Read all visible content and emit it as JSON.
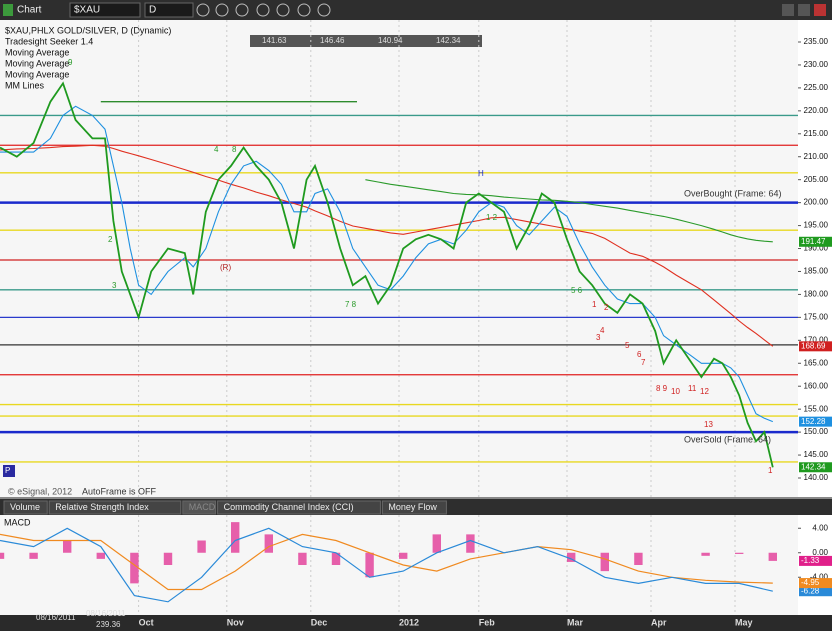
{
  "toolbar": {
    "title": "Chart",
    "symbol": "$XAU",
    "interval": "D"
  },
  "chart_data": [
    {
      "type": "line",
      "title": "$XAU,PHLX GOLD/SILVER, D (Dynamic)",
      "legend": [
        "Tradesight Seeker 1.4",
        "Moving Average",
        "Moving Average",
        "Moving Average",
        "MM Lines"
      ],
      "ohlc": [
        141.63,
        146.46,
        140.94,
        142.34
      ],
      "x": [
        0,
        4,
        8,
        12,
        15,
        18,
        22,
        25,
        27,
        29,
        31,
        33,
        36,
        40,
        44,
        46,
        49,
        52,
        55,
        58,
        61,
        64,
        67,
        70,
        73,
        75,
        78,
        81,
        84,
        87,
        90,
        93,
        96,
        99,
        102,
        105,
        108,
        111,
        114,
        117,
        120,
        123,
        126,
        129,
        132,
        135,
        138,
        141,
        144,
        147,
        150,
        153,
        156,
        158,
        161,
        164,
        167,
        170,
        172,
        174,
        176,
        178,
        180,
        182,
        184
      ],
      "series": [
        {
          "name": "$XAU",
          "color": "#1f9a1f",
          "values": [
            212,
            210,
            213,
            222,
            226,
            218,
            214,
            214,
            196,
            185,
            180,
            175,
            185,
            190,
            189,
            180,
            198,
            205,
            208,
            212,
            208,
            205,
            200,
            190,
            205,
            208,
            200,
            190,
            182,
            184,
            178,
            182,
            190,
            192,
            193,
            192,
            190,
            200,
            202,
            200,
            198,
            190,
            195,
            202,
            200,
            192,
            185,
            182,
            178,
            176,
            180,
            178,
            172,
            165,
            170,
            166,
            162,
            166,
            165,
            162,
            158,
            152,
            148,
            150,
            142.34
          ]
        },
        {
          "name": "Moving Average",
          "color": "#1e90e0",
          "values": [
            211,
            211,
            211,
            214,
            219,
            221,
            219,
            216,
            208,
            200,
            190,
            182,
            180,
            185,
            188,
            186,
            190,
            198,
            204,
            208,
            209,
            207,
            204,
            198,
            198,
            202,
            203,
            198,
            190,
            186,
            182,
            181,
            184,
            188,
            191,
            192,
            191,
            194,
            198,
            200,
            199,
            195,
            193,
            196,
            199,
            197,
            191,
            186,
            182,
            179,
            178,
            178,
            175,
            171,
            169,
            167,
            165,
            165,
            165,
            164,
            162,
            158,
            154,
            153,
            152.28
          ]
        },
        {
          "name": "Moving Average",
          "color": "#e03020",
          "values": [
            211.5,
            211.7,
            211.8,
            212,
            212.2,
            212.3,
            212.5,
            212.3,
            211.8,
            211.2,
            210.7,
            210.2,
            209.4,
            208.3,
            207.2,
            206.6,
            205.7,
            204.9,
            204,
            203.2,
            202.3,
            201.5,
            200.6,
            199.8,
            199,
            198.2,
            197.1,
            195.9,
            194.9,
            194.4,
            193.9,
            193.4,
            193.1,
            193.6,
            194.1,
            194.6,
            195.1,
            195.6,
            196.1,
            196.7,
            196.8,
            196.3,
            195.8,
            195.3,
            194.8,
            194.3,
            193.8,
            193.3,
            192.2,
            190.6,
            189,
            188.3,
            187,
            186,
            184.2,
            182.6,
            181,
            178.8,
            177.3,
            175.8,
            174.2,
            172.8,
            171.5,
            170.1,
            168.69
          ]
        },
        {
          "name": "Moving Average",
          "color": "#2a9a2a",
          "values": [
            null,
            null,
            null,
            null,
            null,
            null,
            null,
            null,
            null,
            null,
            null,
            null,
            null,
            null,
            null,
            null,
            null,
            null,
            null,
            null,
            null,
            null,
            null,
            null,
            null,
            null,
            null,
            null,
            null,
            205,
            204.5,
            204,
            203.6,
            203.2,
            202.8,
            202.4,
            202,
            201.8,
            201.7,
            201.5,
            201.2,
            201,
            200.8,
            200.6,
            200.5,
            200.3,
            200,
            199.6,
            199.2,
            198.8,
            198.3,
            197.8,
            197.3,
            197,
            196.4,
            195.7,
            195,
            194.2,
            193.6,
            193,
            192.5,
            192.1,
            191.8,
            191.6,
            191.47
          ]
        }
      ],
      "badge_colors": [
        "#1f9a1f",
        "#1e90e0",
        "#d02020",
        "#1f9a1f"
      ],
      "levels": [
        {
          "value": 222,
          "color": "#2e8b2e",
          "from": 24,
          "to": 85
        },
        {
          "value": 219,
          "color": "#3a9a8a"
        },
        {
          "value": 212.5,
          "color": "#e02020"
        },
        {
          "value": 206.5,
          "color": "#e8d820"
        },
        {
          "value": 200,
          "color": "#1a2acc",
          "weight": "thick"
        },
        {
          "value": 194,
          "color": "#e8d820"
        },
        {
          "value": 187.5,
          "color": "#d02020"
        },
        {
          "value": 181,
          "color": "#3a9a8a"
        },
        {
          "value": 175,
          "color": "#2a3acc"
        },
        {
          "value": 169,
          "color": "#333333"
        },
        {
          "value": 162.5,
          "color": "#e02020"
        },
        {
          "value": 156,
          "color": "#e8d820"
        },
        {
          "value": 153.5,
          "color": "#e8d820"
        },
        {
          "value": 150,
          "color": "#1a2acc",
          "weight": "thick"
        },
        {
          "value": 143.5,
          "color": "#e8d820"
        }
      ],
      "annotations": [
        "OverBought (Frame: 64)",
        "OverSold (Frame: 64)",
        "AutoFrame is OFF",
        "© eSignal, 2012",
        "H",
        "(R)",
        "P",
        "1",
        "2",
        "3",
        "4",
        "5",
        "6",
        "7",
        "8 9",
        "10",
        "11",
        "12",
        "13",
        "1",
        "9",
        "2",
        "3",
        "4",
        "8",
        "7 8",
        "1 2",
        "5 6"
      ],
      "xlim": [
        0,
        190
      ],
      "xticks": [
        {
          "value": 33,
          "label": "Oct"
        },
        {
          "value": 54,
          "label": "Nov"
        },
        {
          "value": 74,
          "label": "Dec"
        },
        {
          "value": 95,
          "label": "2012"
        },
        {
          "value": 114,
          "label": "Feb"
        },
        {
          "value": 135,
          "label": "Mar"
        },
        {
          "value": 155,
          "label": "Apr"
        },
        {
          "value": 175,
          "label": "May"
        }
      ],
      "ylim": [
        140,
        235
      ],
      "yticks": [
        {
          "value": 140,
          "label": "140.00"
        },
        {
          "value": 145,
          "label": "145.00"
        },
        {
          "value": 150,
          "label": "150.00"
        },
        {
          "value": 155,
          "label": "155.00"
        },
        {
          "value": 160,
          "label": "160.00"
        },
        {
          "value": 165,
          "label": "165.00"
        },
        {
          "value": 170,
          "label": "170.00"
        },
        {
          "value": 175,
          "label": "175.00"
        },
        {
          "value": 180,
          "label": "180.00"
        },
        {
          "value": 185,
          "label": "185.00"
        },
        {
          "value": 190,
          "label": "190.00"
        },
        {
          "value": 195,
          "label": "195.00"
        },
        {
          "value": 200,
          "label": "200.00"
        },
        {
          "value": 205,
          "label": "205.00"
        },
        {
          "value": 210,
          "label": "210.00"
        },
        {
          "value": 215,
          "label": "215.00"
        },
        {
          "value": 220,
          "label": "220.00"
        },
        {
          "value": 225,
          "label": "225.00"
        },
        {
          "value": 230,
          "label": "230.00"
        },
        {
          "value": 235,
          "label": "235.00"
        }
      ],
      "grid": true
    },
    {
      "type": "macd",
      "title": "MACD",
      "x": [
        0,
        8,
        16,
        24,
        32,
        40,
        48,
        56,
        64,
        72,
        80,
        88,
        96,
        104,
        112,
        120,
        128,
        136,
        144,
        152,
        160,
        168,
        176,
        184
      ],
      "series": [
        {
          "name": "MACD",
          "color": "#2a8ad8",
          "values": [
            2,
            1,
            4,
            1,
            -7,
            -8,
            -4,
            2,
            4,
            1,
            0,
            -4,
            -3,
            0,
            2,
            0,
            1,
            -1,
            -4,
            -5,
            -4,
            -5,
            -5,
            -6.28
          ]
        },
        {
          "name": "Signal",
          "color": "#f08a20",
          "values": [
            3,
            2,
            2,
            2,
            -2,
            -6,
            -6,
            -3,
            1,
            3,
            2,
            0,
            -2,
            -3,
            -1,
            0,
            1,
            0.5,
            -1,
            -3,
            -4,
            -4.5,
            -4.8,
            -4.95
          ]
        },
        {
          "name": "Histogram",
          "color": "#e0208a",
          "values": [
            -1,
            -1,
            2,
            -1,
            -5,
            -2,
            2,
            5,
            3,
            -2,
            -2,
            -4,
            -1,
            3,
            3,
            0,
            0,
            -1.5,
            -3,
            -2,
            0,
            -0.5,
            -0.2,
            -1.33
          ]
        }
      ],
      "xlim": [
        0,
        190
      ],
      "ylim": [
        -10,
        6
      ],
      "yticks": [
        {
          "value": 4,
          "label": "4.00"
        },
        {
          "value": 0,
          "label": "0.00"
        },
        {
          "value": -4,
          "label": "-4.00"
        }
      ]
    }
  ],
  "tabs": [
    "Volume",
    "Relative Strength Index",
    "MACD",
    "Commodity Channel Index (CCI)",
    "Money Flow"
  ],
  "footer": {
    "start": "08/16/2011",
    "cursor_date": "08/16/2011",
    "cursor_value": "239.36"
  }
}
